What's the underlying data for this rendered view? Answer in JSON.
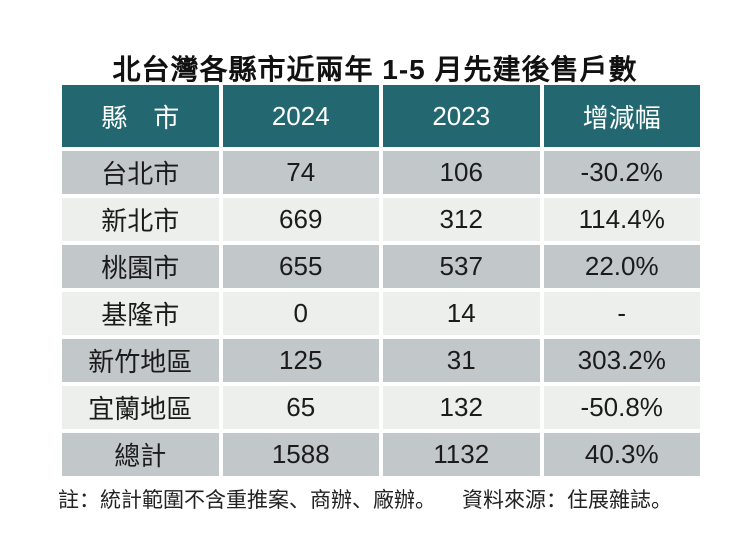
{
  "title": "北台灣各縣市近兩年 1-5 月先建後售戶數",
  "chart_data": {
    "type": "table",
    "title": "北台灣各縣市近兩年 1-5 月先建後售戶數",
    "columns": [
      "縣　市",
      "2024",
      "2023",
      "增減幅"
    ],
    "rows": [
      [
        "台北市",
        "74",
        "106",
        "-30.2%"
      ],
      [
        "新北市",
        "669",
        "312",
        "114.4%"
      ],
      [
        "桃園市",
        "655",
        "537",
        "22.0%"
      ],
      [
        "基隆市",
        "0",
        "14",
        "-"
      ],
      [
        "新竹地區",
        "125",
        "31",
        "303.2%"
      ],
      [
        "宜蘭地區",
        "65",
        "132",
        "-50.8%"
      ],
      [
        "總計",
        "1588",
        "1132",
        "40.3%"
      ]
    ],
    "note": "註：統計範圍不含重推案、商辦、廠辦。",
    "source": "資料來源：住展雜誌。"
  },
  "colors": {
    "header_bg": "#236770",
    "header_text": "#ffffff",
    "row_gray": "#c2c7ca",
    "row_light": "#edefec",
    "body_text": "#1b1b1b",
    "background": "#ffffff"
  }
}
